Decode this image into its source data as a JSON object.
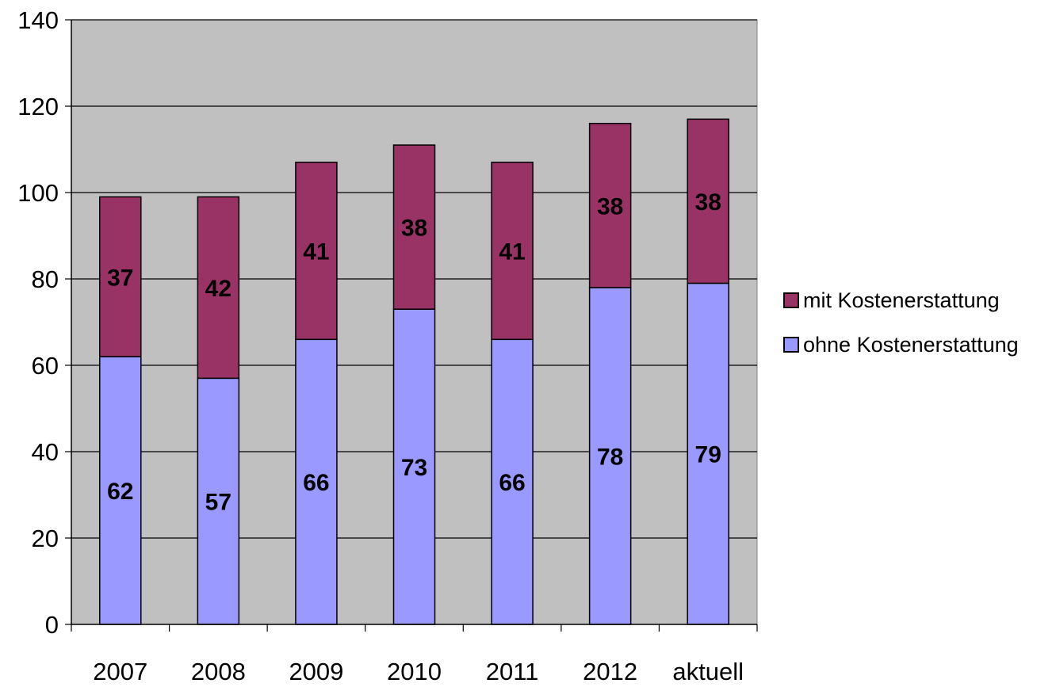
{
  "chart_data": {
    "type": "bar",
    "stacked": true,
    "categories": [
      "2007",
      "2008",
      "2009",
      "2010",
      "2011",
      "2012",
      "aktuell"
    ],
    "series": [
      {
        "name": "ohne Kostenerstattung",
        "values": [
          62,
          57,
          66,
          73,
          66,
          78,
          79
        ],
        "color": "#9999ff"
      },
      {
        "name": "mit Kostenerstattung",
        "values": [
          37,
          42,
          41,
          38,
          41,
          38,
          38
        ],
        "color": "#993366"
      }
    ],
    "ylim": [
      0,
      140
    ],
    "yticks": [
      0,
      20,
      40,
      60,
      80,
      100,
      120,
      140
    ],
    "grid": true,
    "plot_background": "#c0c0c0",
    "legend_position": "right",
    "title": "",
    "xlabel": "",
    "ylabel": ""
  }
}
